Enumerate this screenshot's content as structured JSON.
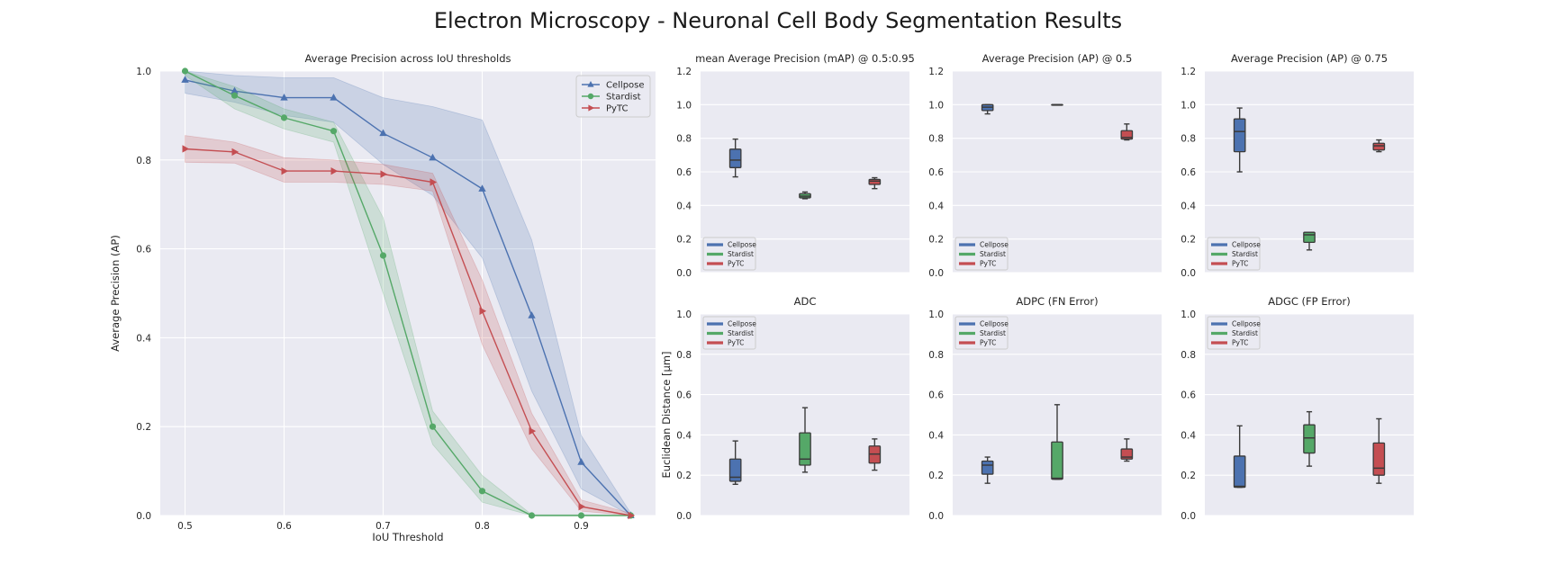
{
  "figure": {
    "title": "Electron Microscopy - Neuronal Cell Body Segmentation Results",
    "background": "#ffffff",
    "axes_background": "#eaeaf2",
    "grid_color": "#ffffff"
  },
  "chart_data": [
    {
      "id": "ap-curve",
      "type": "line",
      "title": "Average Precision across IoU thresholds",
      "xlabel": "IoU Threshold",
      "ylabel": "Average Precision (AP)",
      "xlim": [
        0.475,
        0.975
      ],
      "ylim": [
        0,
        1.0
      ],
      "xticks": [
        "0.5",
        "0.6",
        "0.7",
        "0.8",
        "0.9"
      ],
      "yticks": [
        "0.0",
        "0.2",
        "0.4",
        "0.6",
        "0.8",
        "1.0"
      ],
      "grid": true,
      "legend": "top-right",
      "x": [
        0.5,
        0.55,
        0.6,
        0.65,
        0.7,
        0.75,
        0.8,
        0.85,
        0.9,
        0.95
      ],
      "series": [
        {
          "name": "Cellpose",
          "color": "#4c72b0",
          "marker": "triangle-up",
          "values": [
            0.98,
            0.955,
            0.94,
            0.94,
            0.86,
            0.805,
            0.735,
            0.45,
            0.12,
            0.0
          ],
          "lower": [
            0.95,
            0.93,
            0.9,
            0.885,
            0.79,
            0.72,
            0.58,
            0.28,
            0.06,
            0.0
          ],
          "upper": [
            1.0,
            0.99,
            0.985,
            0.985,
            0.94,
            0.92,
            0.89,
            0.62,
            0.18,
            0.005
          ]
        },
        {
          "name": "Stardist",
          "color": "#55a868",
          "marker": "circle",
          "values": [
            1.0,
            0.945,
            0.895,
            0.865,
            0.585,
            0.2,
            0.055,
            0.0,
            0.0,
            0.0
          ],
          "lower": [
            0.99,
            0.915,
            0.87,
            0.84,
            0.5,
            0.16,
            0.03,
            0.0,
            0.0,
            0.0
          ],
          "upper": [
            1.0,
            0.965,
            0.915,
            0.885,
            0.67,
            0.235,
            0.09,
            0.002,
            0.002,
            0.0
          ]
        },
        {
          "name": "PyTC",
          "color": "#c44e52",
          "marker": "triangle-right",
          "values": [
            0.825,
            0.818,
            0.775,
            0.775,
            0.768,
            0.75,
            0.46,
            0.19,
            0.02,
            0.0
          ],
          "lower": [
            0.795,
            0.793,
            0.75,
            0.75,
            0.745,
            0.73,
            0.385,
            0.15,
            0.01,
            0.0
          ],
          "upper": [
            0.855,
            0.84,
            0.805,
            0.8,
            0.79,
            0.77,
            0.53,
            0.23,
            0.035,
            0.005
          ]
        }
      ]
    },
    {
      "id": "map-box",
      "type": "box",
      "title": "mean Average Precision (mAP) @ 0.5:0.95",
      "ylim": [
        0,
        1.2
      ],
      "yticks": [
        "0.0",
        "0.2",
        "0.4",
        "0.6",
        "0.8",
        "1.0",
        "1.2"
      ],
      "legend": "bottom-left",
      "boxes": [
        {
          "name": "Cellpose",
          "color": "#4c72b0",
          "whislo": 0.57,
          "q1": 0.625,
          "med": 0.67,
          "q3": 0.735,
          "whishi": 0.795
        },
        {
          "name": "Stardist",
          "color": "#55a868",
          "whislo": 0.44,
          "q1": 0.445,
          "med": 0.455,
          "q3": 0.47,
          "whishi": 0.48
        },
        {
          "name": "PyTC",
          "color": "#c44e52",
          "whislo": 0.5,
          "q1": 0.525,
          "med": 0.545,
          "q3": 0.555,
          "whishi": 0.565
        }
      ]
    },
    {
      "id": "ap50-box",
      "type": "box",
      "title": "Average Precision (AP) @ 0.5",
      "ylim": [
        0,
        1.2
      ],
      "yticks": [
        "0.0",
        "0.2",
        "0.4",
        "0.6",
        "0.8",
        "1.0",
        "1.2"
      ],
      "legend": "bottom-left",
      "boxes": [
        {
          "name": "Cellpose",
          "color": "#4c72b0",
          "whislo": 0.945,
          "q1": 0.965,
          "med": 0.985,
          "q3": 1.0,
          "whishi": 1.0
        },
        {
          "name": "Stardist",
          "color": "#55a868",
          "whislo": 1.0,
          "q1": 1.0,
          "med": 1.0,
          "q3": 1.0,
          "whishi": 1.0
        },
        {
          "name": "PyTC",
          "color": "#c44e52",
          "whislo": 0.79,
          "q1": 0.795,
          "med": 0.805,
          "q3": 0.845,
          "whishi": 0.885
        }
      ]
    },
    {
      "id": "ap75-box",
      "type": "box",
      "title": "Average Precision (AP) @ 0.75",
      "ylim": [
        0,
        1.2
      ],
      "yticks": [
        "0.0",
        "0.2",
        "0.4",
        "0.6",
        "0.8",
        "1.0",
        "1.2"
      ],
      "legend": "bottom-left",
      "boxes": [
        {
          "name": "Cellpose",
          "color": "#4c72b0",
          "whislo": 0.6,
          "q1": 0.72,
          "med": 0.84,
          "q3": 0.915,
          "whishi": 0.98
        },
        {
          "name": "Stardist",
          "color": "#55a868",
          "whislo": 0.135,
          "q1": 0.18,
          "med": 0.225,
          "q3": 0.24,
          "whishi": 0.24
        },
        {
          "name": "PyTC",
          "color": "#c44e52",
          "whislo": 0.72,
          "q1": 0.73,
          "med": 0.755,
          "q3": 0.77,
          "whishi": 0.79
        }
      ]
    },
    {
      "id": "adc-box",
      "type": "box",
      "title": "ADC",
      "ylabel": "Euclidean Distance [µm]",
      "ylim": [
        0,
        1.0
      ],
      "yticks": [
        "0.0",
        "0.2",
        "0.4",
        "0.6",
        "0.8",
        "1.0"
      ],
      "legend": "top-left",
      "boxes": [
        {
          "name": "Cellpose",
          "color": "#4c72b0",
          "whislo": 0.155,
          "q1": 0.17,
          "med": 0.19,
          "q3": 0.28,
          "whishi": 0.37
        },
        {
          "name": "Stardist",
          "color": "#55a868",
          "whislo": 0.215,
          "q1": 0.25,
          "med": 0.28,
          "q3": 0.41,
          "whishi": 0.535
        },
        {
          "name": "PyTC",
          "color": "#c44e52",
          "whislo": 0.225,
          "q1": 0.26,
          "med": 0.305,
          "q3": 0.345,
          "whishi": 0.38
        }
      ]
    },
    {
      "id": "adpc-box",
      "type": "box",
      "title": "ADPC (FN Error)",
      "ylim": [
        0,
        1.0
      ],
      "yticks": [
        "0.0",
        "0.2",
        "0.4",
        "0.6",
        "0.8",
        "1.0"
      ],
      "legend": "top-left",
      "boxes": [
        {
          "name": "Cellpose",
          "color": "#4c72b0",
          "whislo": 0.16,
          "q1": 0.205,
          "med": 0.25,
          "q3": 0.27,
          "whishi": 0.29
        },
        {
          "name": "Stardist",
          "color": "#55a868",
          "whislo": 0.18,
          "q1": 0.18,
          "med": 0.185,
          "q3": 0.365,
          "whishi": 0.55
        },
        {
          "name": "PyTC",
          "color": "#c44e52",
          "whislo": 0.27,
          "q1": 0.28,
          "med": 0.29,
          "q3": 0.33,
          "whishi": 0.38
        }
      ]
    },
    {
      "id": "adgc-box",
      "type": "box",
      "title": "ADGC (FP Error)",
      "ylim": [
        0,
        1.0
      ],
      "yticks": [
        "0.0",
        "0.2",
        "0.4",
        "0.6",
        "0.8",
        "1.0"
      ],
      "legend": "top-left",
      "boxes": [
        {
          "name": "Cellpose",
          "color": "#4c72b0",
          "whislo": 0.14,
          "q1": 0.14,
          "med": 0.145,
          "q3": 0.295,
          "whishi": 0.445
        },
        {
          "name": "Stardist",
          "color": "#55a868",
          "whislo": 0.245,
          "q1": 0.31,
          "med": 0.385,
          "q3": 0.45,
          "whishi": 0.515
        },
        {
          "name": "PyTC",
          "color": "#c44e52",
          "whislo": 0.16,
          "q1": 0.2,
          "med": 0.235,
          "q3": 0.36,
          "whishi": 0.48
        }
      ]
    }
  ]
}
